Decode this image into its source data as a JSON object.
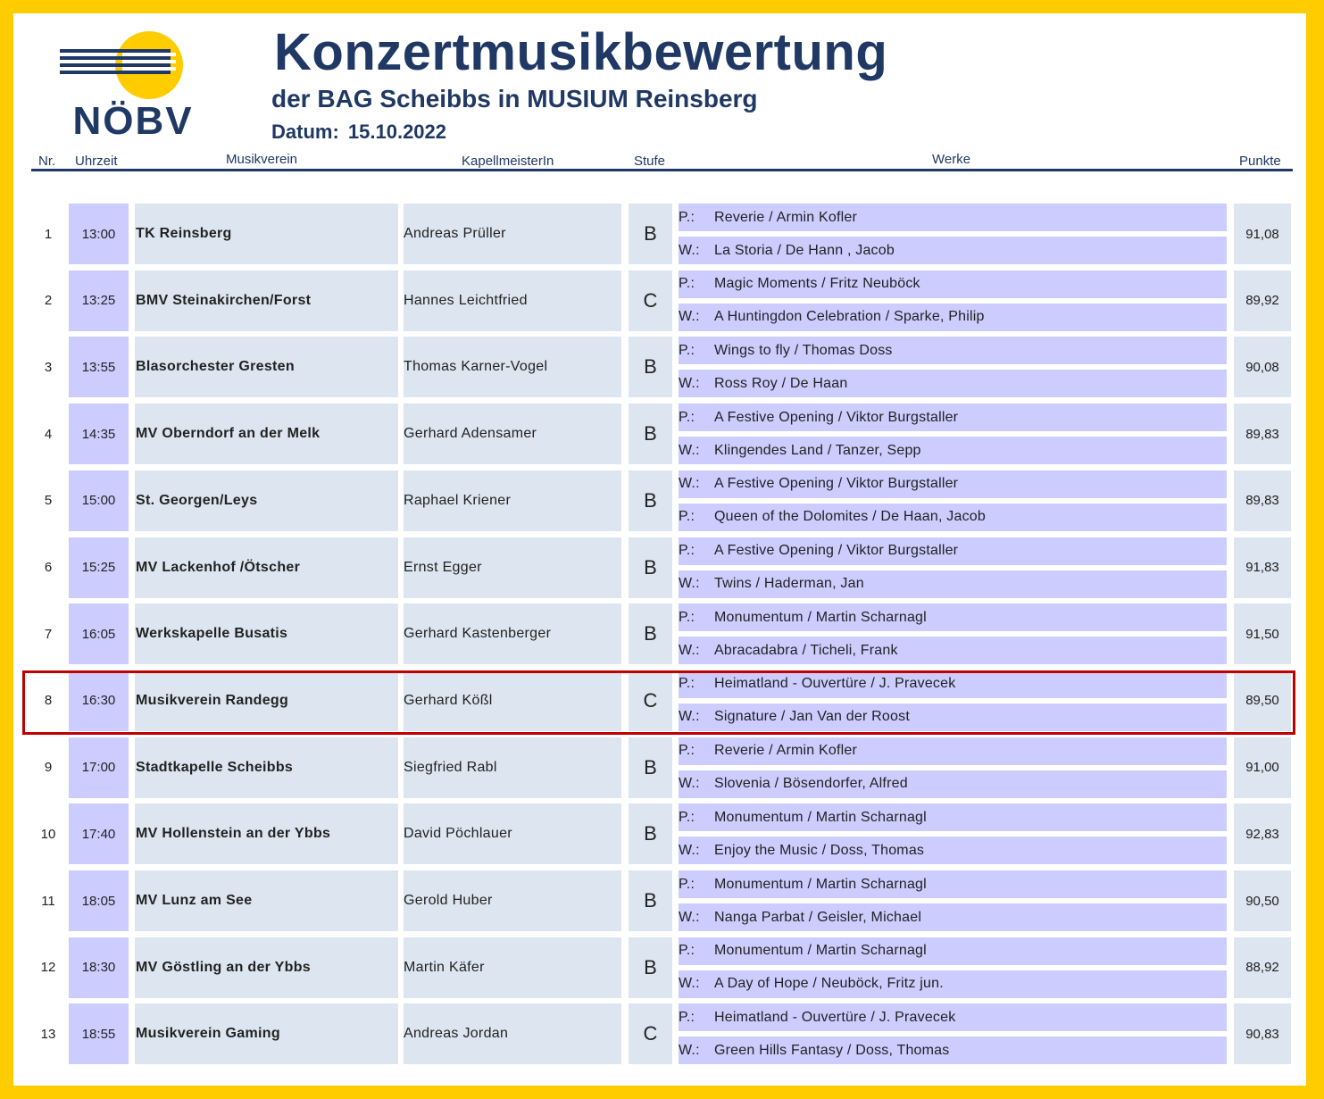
{
  "header": {
    "title": "Konzertmusikbewertung",
    "subtitle": "der BAG Scheibbs in MUSIUM Reinsberg",
    "date_label": "Datum:",
    "date_value": "15.10.2022"
  },
  "logo": {
    "text": "NÖBV",
    "icon": "noebv-logo-icon"
  },
  "columns": {
    "nr": "Nr.",
    "uhrzeit": "Uhrzeit",
    "musikverein": "Musikverein",
    "kapellmeister": "KapellmeisterIn",
    "stufe": "Stufe",
    "werke": "Werke",
    "punkte": "Punkte"
  },
  "colors": {
    "frame": "#ffcc00",
    "navy": "#1f3864",
    "time_cell": "#ccccff",
    "cell": "#dde5f0",
    "highlight_border": "#c00000"
  },
  "highlighted_row": 8,
  "rows": [
    {
      "nr": "1",
      "time": "13:00",
      "verein": "TK Reinsberg",
      "kapell": "Andreas Prüller",
      "stufe": "B",
      "w1_label": "P.:",
      "w1": "Reverie / Armin Kofler",
      "w2_label": "W.:",
      "w2": "La Storia / De Hann , Jacob",
      "punkte": "91,08"
    },
    {
      "nr": "2",
      "time": "13:25",
      "verein": "BMV Steinakirchen/Forst",
      "kapell": "Hannes Leichtfried",
      "stufe": "C",
      "w1_label": "P.:",
      "w1": "Magic Moments / Fritz Neuböck",
      "w2_label": "W.:",
      "w2": "A Huntingdon Celebration / Sparke, Philip",
      "punkte": "89,92"
    },
    {
      "nr": "3",
      "time": "13:55",
      "verein": "Blasorchester Gresten",
      "kapell": "Thomas Karner-Vogel",
      "stufe": "B",
      "w1_label": "P.:",
      "w1": "Wings to fly / Thomas Doss",
      "w2_label": "W.:",
      "w2": "Ross Roy / De Haan",
      "punkte": "90,08"
    },
    {
      "nr": "4",
      "time": "14:35",
      "verein": "MV Oberndorf an der Melk",
      "kapell": "Gerhard Adensamer",
      "stufe": "B",
      "w1_label": "P.:",
      "w1": "A Festive Opening / Viktor Burgstaller",
      "w2_label": "W.:",
      "w2": "Klingendes Land / Tanzer, Sepp",
      "punkte": "89,83"
    },
    {
      "nr": "5",
      "time": "15:00",
      "verein": "St. Georgen/Leys",
      "kapell": "Raphael Kriener",
      "stufe": "B",
      "w1_label": "W.:",
      "w1": "A Festive Opening / Viktor Burgstaller",
      "w2_label": "P.:",
      "w2": "Queen of the Dolomites / De Haan, Jacob",
      "punkte": "89,83"
    },
    {
      "nr": "6",
      "time": "15:25",
      "verein": "MV Lackenhof /Ötscher",
      "kapell": "Ernst Egger",
      "stufe": "B",
      "w1_label": "P.:",
      "w1": "A Festive Opening / Viktor Burgstaller",
      "w2_label": "W.:",
      "w2": "Twins / Haderman, Jan",
      "punkte": "91,83"
    },
    {
      "nr": "7",
      "time": "16:05",
      "verein": "Werkskapelle Busatis",
      "kapell": "Gerhard Kastenberger",
      "stufe": "B",
      "w1_label": "P.:",
      "w1": "Monumentum / Martin Scharnagl",
      "w2_label": "W.:",
      "w2": "Abracadabra / Ticheli, Frank",
      "punkte": "91,50"
    },
    {
      "nr": "8",
      "time": "16:30",
      "verein": "Musikverein Randegg",
      "kapell": "Gerhard Kößl",
      "stufe": "C",
      "w1_label": "P.:",
      "w1": "Heimatland - Ouvertüre / J. Pravecek",
      "w2_label": "W.:",
      "w2": "Signature / Jan Van der Roost",
      "punkte": "89,50"
    },
    {
      "nr": "9",
      "time": "17:00",
      "verein": "Stadtkapelle Scheibbs",
      "kapell": "Siegfried Rabl",
      "stufe": "B",
      "w1_label": "P.:",
      "w1": "Reverie / Armin Kofler",
      "w2_label": "W.:",
      "w2": "Slovenia / Bösendorfer, Alfred",
      "punkte": "91,00"
    },
    {
      "nr": "10",
      "time": "17:40",
      "verein": "MV Hollenstein an der Ybbs",
      "kapell": "David Pöchlauer",
      "stufe": "B",
      "w1_label": "P.:",
      "w1": "Monumentum / Martin Scharnagl",
      "w2_label": "W.:",
      "w2": "Enjoy the Music / Doss, Thomas",
      "punkte": "92,83"
    },
    {
      "nr": "11",
      "time": "18:05",
      "verein": "MV Lunz am See",
      "kapell": "Gerold Huber",
      "stufe": "B",
      "w1_label": "P.:",
      "w1": "Monumentum / Martin Scharnagl",
      "w2_label": "W.:",
      "w2": "Nanga Parbat / Geisler, Michael",
      "punkte": "90,50"
    },
    {
      "nr": "12",
      "time": "18:30",
      "verein": "MV Göstling an der Ybbs",
      "kapell": "Martin Käfer",
      "stufe": "B",
      "w1_label": "P.:",
      "w1": "Monumentum / Martin Scharnagl",
      "w2_label": "W.:",
      "w2": "A Day of Hope / Neuböck, Fritz jun.",
      "punkte": "88,92"
    },
    {
      "nr": "13",
      "time": "18:55",
      "verein": "Musikverein Gaming",
      "kapell": "Andreas Jordan",
      "stufe": "C",
      "w1_label": "P.:",
      "w1": "Heimatland - Ouvertüre / J. Pravecek",
      "w2_label": "W.:",
      "w2": "Green Hills Fantasy / Doss, Thomas",
      "punkte": "90,83"
    }
  ]
}
